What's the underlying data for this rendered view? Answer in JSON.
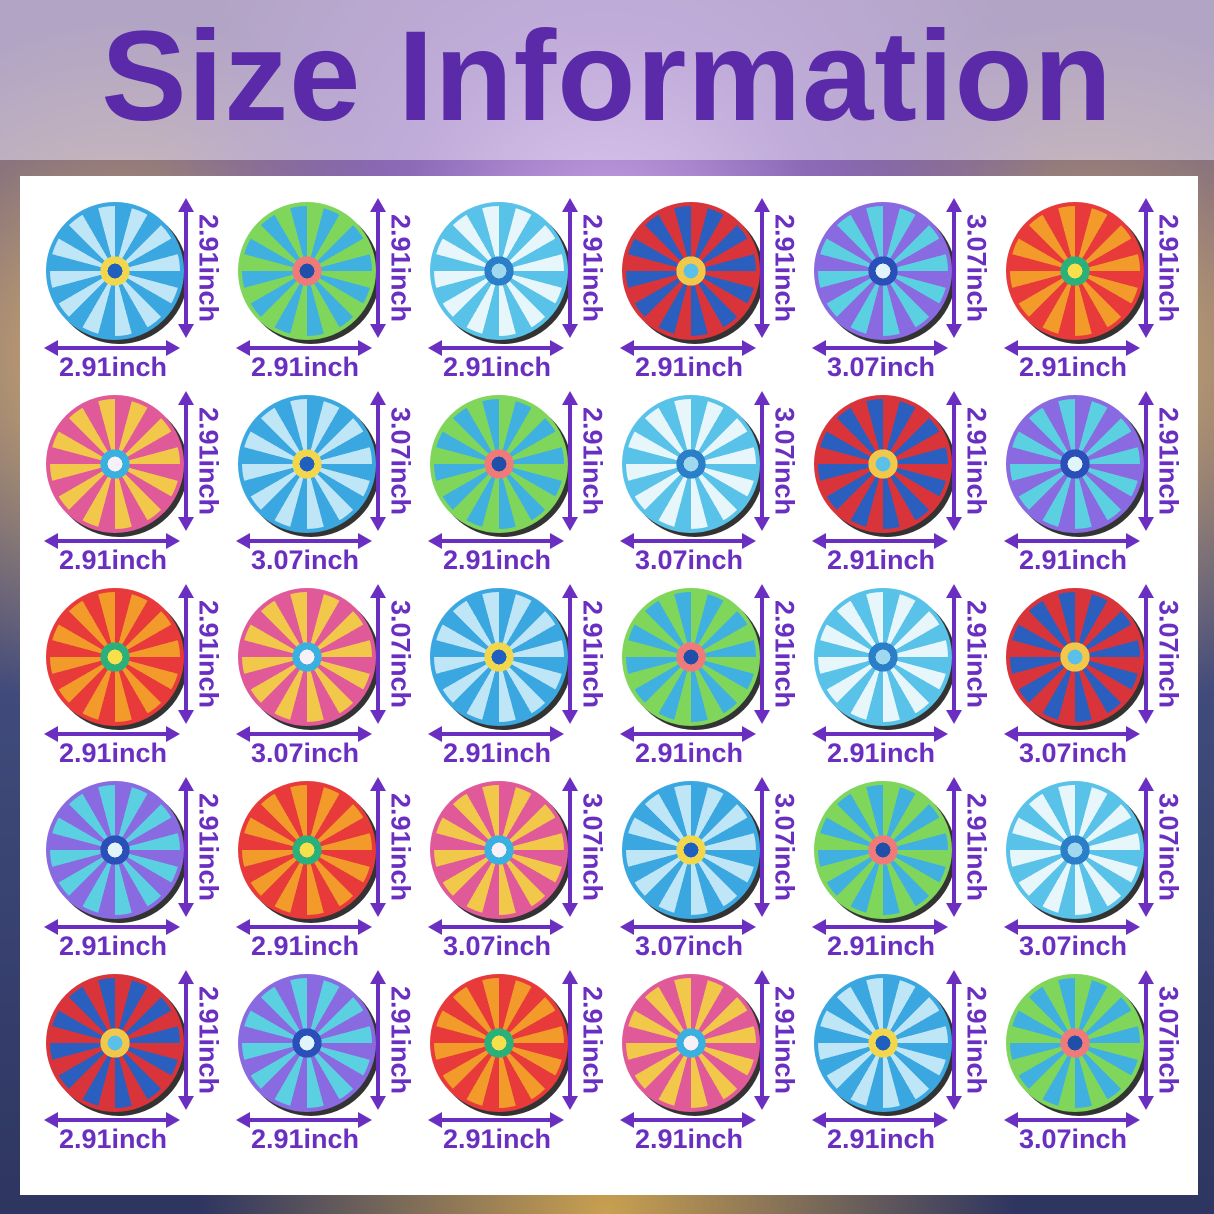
{
  "title": "Size Information",
  "accent_color": "#6a2fc0",
  "title_color": "#5a2aa8",
  "rows": [
    [
      {
        "w": "2.91inch",
        "h": "2.91inch"
      },
      {
        "w": "2.91inch",
        "h": "2.91inch"
      },
      {
        "w": "2.91inch",
        "h": "2.91inch"
      },
      {
        "w": "2.91inch",
        "h": "2.91inch"
      },
      {
        "w": "3.07inch",
        "h": "3.07inch"
      },
      {
        "w": "2.91inch",
        "h": "2.91inch"
      }
    ],
    [
      {
        "w": "2.91inch",
        "h": "2.91inch"
      },
      {
        "w": "3.07inch",
        "h": "3.07inch"
      },
      {
        "w": "2.91inch",
        "h": "2.91inch"
      },
      {
        "w": "3.07inch",
        "h": "3.07inch"
      },
      {
        "w": "2.91inch",
        "h": "2.91inch"
      },
      {
        "w": "2.91inch",
        "h": "2.91inch"
      }
    ],
    [
      {
        "w": "2.91inch",
        "h": "2.91inch"
      },
      {
        "w": "3.07inch",
        "h": "3.07inch"
      },
      {
        "w": "2.91inch",
        "h": "2.91inch"
      },
      {
        "w": "2.91inch",
        "h": "2.91inch"
      },
      {
        "w": "2.91inch",
        "h": "2.91inch"
      },
      {
        "w": "3.07inch",
        "h": "3.07inch"
      }
    ],
    [
      {
        "w": "2.91inch",
        "h": "2.91inch"
      },
      {
        "w": "2.91inch",
        "h": "2.91inch"
      },
      {
        "w": "3.07inch",
        "h": "3.07inch"
      },
      {
        "w": "3.07inch",
        "h": "3.07inch"
      },
      {
        "w": "2.91inch",
        "h": "2.91inch"
      },
      {
        "w": "3.07inch",
        "h": "3.07inch"
      }
    ],
    [
      {
        "w": "2.91inch",
        "h": "2.91inch"
      },
      {
        "w": "2.91inch",
        "h": "2.91inch"
      },
      {
        "w": "2.91inch",
        "h": "2.91inch"
      },
      {
        "w": "2.91inch",
        "h": "2.91inch"
      },
      {
        "w": "2.91inch",
        "h": "2.91inch"
      },
      {
        "w": "3.07inch",
        "h": "3.07inch"
      }
    ]
  ]
}
